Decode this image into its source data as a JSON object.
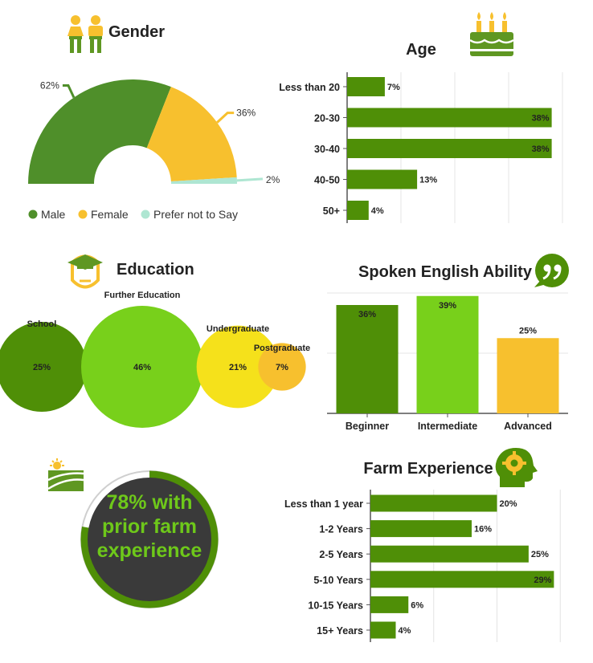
{
  "colors": {
    "green": "#4f8f2a",
    "bright_green": "#78d01b",
    "yellow": "#f7c02e",
    "lemon": "#f5e11b",
    "mint": "#aee6d2",
    "bar_green": "#4f8f07",
    "icon_green": "#5f9722",
    "text": "#222222",
    "dark_circle": "#3a3a3a"
  },
  "gender": {
    "title": "Gender",
    "legend": [
      "Male",
      "Female",
      "Prefer not to Say"
    ]
  },
  "age": {
    "title": "Age"
  },
  "education": {
    "title": "Education"
  },
  "english": {
    "title": "Spoken English Ability"
  },
  "farm": {
    "title": "Farm Experience"
  },
  "prior": {
    "line1": "78% with",
    "line2": "prior farm",
    "line3": "experience"
  },
  "chart_data": [
    {
      "id": "gender",
      "type": "pie",
      "variant": "half-donut",
      "title": "Gender",
      "categories": [
        "Male",
        "Female",
        "Prefer not to Say"
      ],
      "values": [
        62,
        36,
        2
      ],
      "value_labels": [
        "62%",
        "36%",
        "2%"
      ],
      "colors": [
        "#4f8f2a",
        "#f7c02e",
        "#aee6d2"
      ],
      "legend": "bottom"
    },
    {
      "id": "age",
      "type": "bar",
      "orientation": "horizontal",
      "title": "Age",
      "categories": [
        "Less than 20",
        "20-30",
        "30-40",
        "40-50",
        "50+"
      ],
      "values": [
        7,
        38,
        38,
        13,
        4
      ],
      "value_labels": [
        "7%",
        "38%",
        "38%",
        "13%",
        "4%"
      ],
      "xlim": [
        0,
        40
      ],
      "grid": true
    },
    {
      "id": "education",
      "type": "scatter",
      "variant": "bubble",
      "title": "Education",
      "categories": [
        "School",
        "Further Education",
        "Undergraduate",
        "Postgraduate"
      ],
      "values": [
        25,
        46,
        21,
        7
      ],
      "value_labels": [
        "25%",
        "46%",
        "21%",
        "7%"
      ],
      "colors": [
        "#4f8f07",
        "#78d01b",
        "#f5e11b",
        "#f7c02e"
      ]
    },
    {
      "id": "english",
      "type": "bar",
      "orientation": "vertical",
      "title": "Spoken English Ability",
      "categories": [
        "Beginner",
        "Intermediate",
        "Advanced"
      ],
      "values": [
        36,
        39,
        25
      ],
      "value_labels": [
        "36%",
        "39%",
        "25%"
      ],
      "colors": [
        "#4f8f07",
        "#78d01b",
        "#f7c02e"
      ],
      "ylim": [
        0,
        40
      ],
      "grid": true
    },
    {
      "id": "prior",
      "type": "pie",
      "variant": "ring",
      "categories": [
        "with prior farm experience",
        "without"
      ],
      "values": [
        78,
        22
      ],
      "colors": [
        "#4f8f07",
        "#ffffff"
      ]
    },
    {
      "id": "farm",
      "type": "bar",
      "orientation": "horizontal",
      "title": "Farm Experience",
      "categories": [
        "Less than 1 year",
        "1-2 Years",
        "2-5 Years",
        "5-10 Years",
        "10-15 Years",
        "15+ Years"
      ],
      "values": [
        20,
        16,
        25,
        29,
        6,
        4
      ],
      "value_labels": [
        "20%",
        "16%",
        "25%",
        "29%",
        "6%",
        "4%"
      ],
      "xlim": [
        0,
        32
      ],
      "grid": true
    }
  ]
}
